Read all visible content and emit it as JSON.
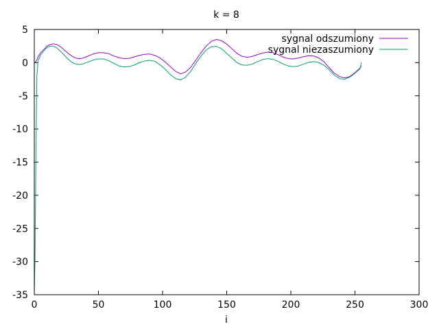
{
  "chart_data": {
    "type": "line",
    "title": "k = 8",
    "xlabel": "i",
    "ylabel": "",
    "xlim": [
      0,
      300
    ],
    "ylim": [
      -35,
      5
    ],
    "xticks": [
      0,
      50,
      100,
      150,
      200,
      250,
      300
    ],
    "yticks": [
      5,
      0,
      -5,
      -10,
      -15,
      -20,
      -25,
      -30,
      -35
    ],
    "xtick_labels": [
      "0",
      "50",
      "100",
      "150",
      "200",
      "250",
      "300"
    ],
    "ytick_labels": [
      "5",
      "0",
      "-5",
      "-10",
      "-15",
      "-20",
      "-25",
      "-30",
      "-35"
    ],
    "grid": false,
    "legend_position": "top-right",
    "series": [
      {
        "name": "sygnal odszumiony",
        "color": "#9400d3",
        "x": [
          0,
          1,
          2,
          3,
          5,
          8,
          10,
          12,
          15,
          18,
          21,
          24,
          27,
          30,
          33,
          36,
          39,
          42,
          46,
          50,
          54,
          58,
          62,
          66,
          70,
          74,
          78,
          82,
          86,
          90,
          94,
          98,
          102,
          106,
          110,
          114,
          118,
          122,
          126,
          130,
          134,
          138,
          142,
          146,
          150,
          154,
          158,
          162,
          166,
          170,
          174,
          178,
          182,
          186,
          190,
          194,
          198,
          202,
          206,
          210,
          214,
          218,
          222,
          226,
          230,
          234,
          238,
          242,
          246,
          250,
          254,
          255
        ],
        "y": [
          0.0,
          0.1,
          0.4,
          0.9,
          1.5,
          2.1,
          2.5,
          2.7,
          2.85,
          2.7,
          2.3,
          1.8,
          1.3,
          0.9,
          0.65,
          0.6,
          0.75,
          1.0,
          1.3,
          1.5,
          1.5,
          1.35,
          1.0,
          0.75,
          0.6,
          0.65,
          0.85,
          1.1,
          1.25,
          1.3,
          1.1,
          0.7,
          0.1,
          -0.6,
          -1.3,
          -1.7,
          -1.4,
          -0.7,
          0.4,
          1.5,
          2.5,
          3.2,
          3.5,
          3.3,
          2.8,
          2.1,
          1.4,
          0.95,
          0.8,
          0.95,
          1.2,
          1.45,
          1.6,
          1.5,
          1.2,
          0.85,
          0.6,
          0.55,
          0.7,
          0.9,
          1.05,
          1.0,
          0.7,
          0.1,
          -0.8,
          -1.6,
          -2.1,
          -2.3,
          -2.1,
          -1.5,
          -0.8,
          -0.5
        ]
      },
      {
        "name": "sygnal niezaszumiony",
        "color": "#009e73",
        "x": [
          0,
          0.5,
          1,
          1.5,
          2,
          3,
          5,
          8,
          10,
          12,
          14,
          17,
          20,
          23,
          26,
          29,
          32,
          35,
          38,
          42,
          46,
          50,
          54,
          58,
          62,
          66,
          70,
          74,
          78,
          82,
          86,
          90,
          94,
          98,
          102,
          106,
          110,
          114,
          118,
          122,
          126,
          130,
          134,
          138,
          142,
          146,
          150,
          154,
          158,
          162,
          166,
          170,
          174,
          178,
          182,
          186,
          190,
          194,
          198,
          202,
          206,
          210,
          214,
          218,
          222,
          226,
          230,
          234,
          238,
          242,
          246,
          250,
          254,
          255
        ],
        "y": [
          -34.8,
          -30.0,
          -20.0,
          -10.0,
          -2.0,
          0.3,
          1.2,
          1.9,
          2.3,
          2.45,
          2.5,
          2.3,
          1.8,
          1.2,
          0.6,
          0.1,
          -0.2,
          -0.3,
          -0.2,
          0.1,
          0.4,
          0.55,
          0.55,
          0.3,
          -0.1,
          -0.5,
          -0.65,
          -0.6,
          -0.35,
          0.0,
          0.25,
          0.35,
          0.2,
          -0.3,
          -1.0,
          -1.8,
          -2.4,
          -2.6,
          -2.2,
          -1.3,
          -0.1,
          1.0,
          1.9,
          2.4,
          2.45,
          2.1,
          1.4,
          0.7,
          0.0,
          -0.35,
          -0.4,
          -0.2,
          0.15,
          0.45,
          0.6,
          0.5,
          0.2,
          -0.2,
          -0.5,
          -0.6,
          -0.5,
          -0.2,
          0.05,
          0.15,
          0.0,
          -0.4,
          -1.1,
          -1.9,
          -2.4,
          -2.5,
          -2.2,
          -1.6,
          -0.9,
          0.0
        ]
      }
    ]
  }
}
